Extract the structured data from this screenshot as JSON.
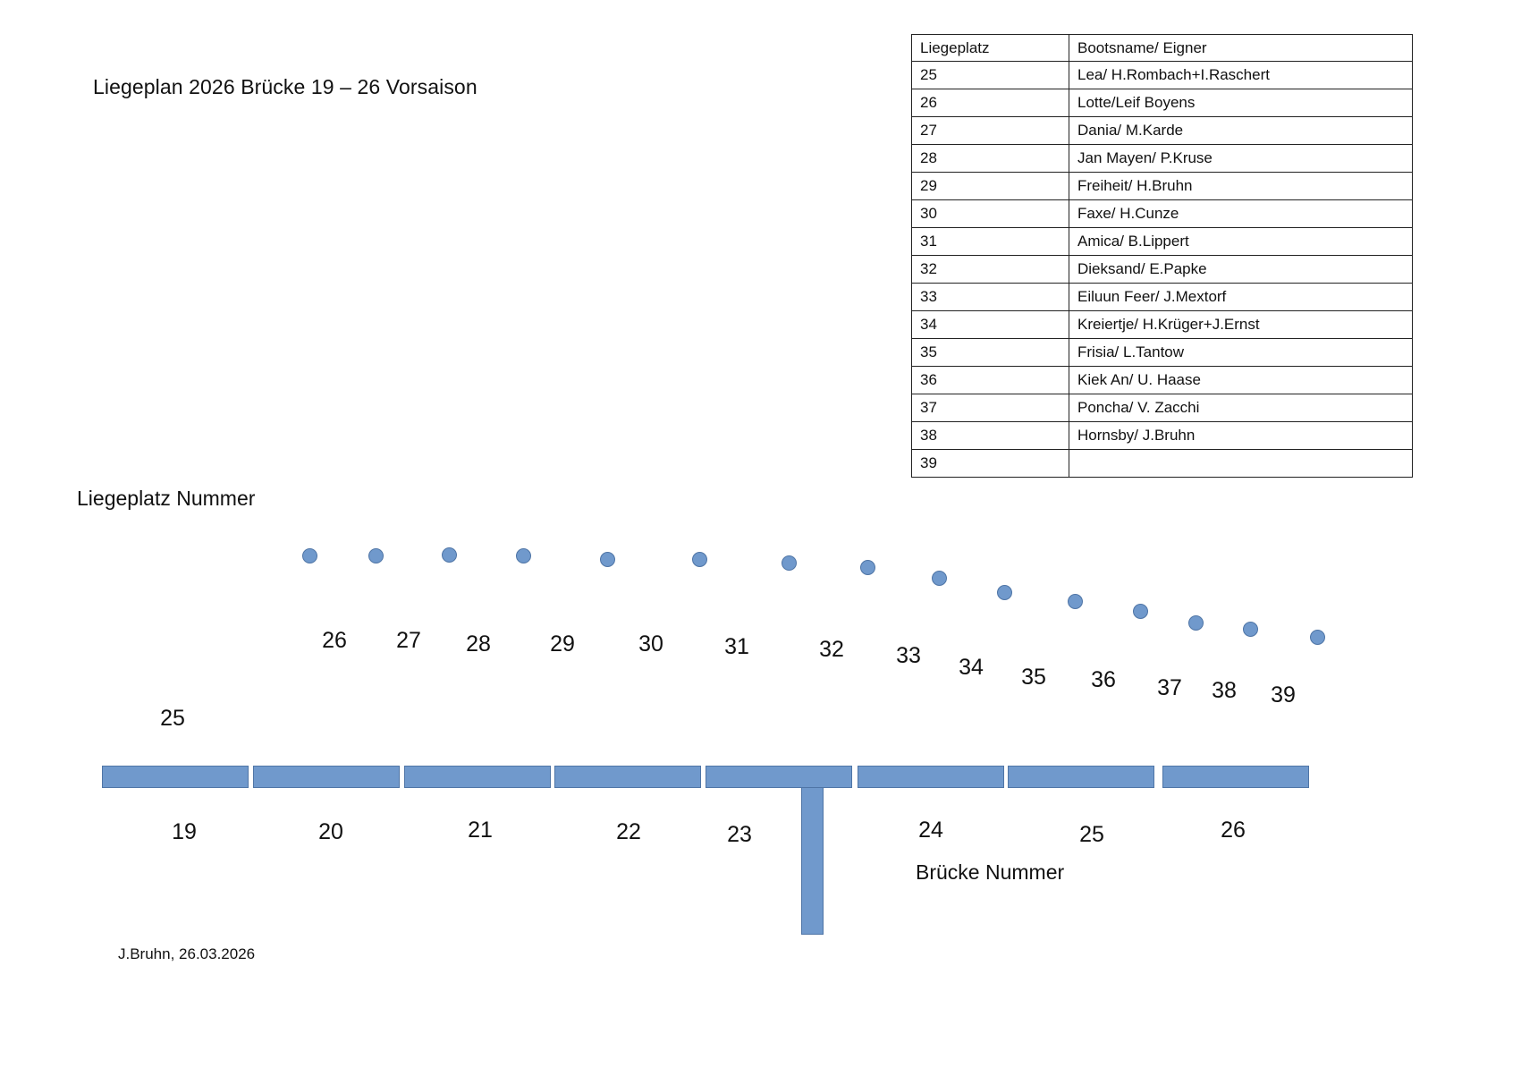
{
  "title": "Liegeplan 2026 Brücke 19 – 26 Vorsaison",
  "table": {
    "headers": [
      "Liegeplatz",
      "Bootsname/ Eigner"
    ],
    "rows": [
      [
        "25",
        "Lea/ H.Rombach+I.Raschert"
      ],
      [
        "26",
        "Lotte/Leif Boyens"
      ],
      [
        "27",
        "Dania/ M.Karde"
      ],
      [
        "28",
        "Jan Mayen/ P.Kruse"
      ],
      [
        "29",
        "Freiheit/ H.Bruhn"
      ],
      [
        "30",
        "Faxe/ H.Cunze"
      ],
      [
        "31",
        "Amica/ B.Lippert"
      ],
      [
        "32",
        "Dieksand/ E.Papke"
      ],
      [
        "33",
        "Eiluun Feer/ J.Mextorf"
      ],
      [
        "34",
        "Kreiertje/ H.Krüger+J.Ernst"
      ],
      [
        "35",
        "Frisia/ L.Tantow"
      ],
      [
        "36",
        "Kiek An/ U. Haase"
      ],
      [
        "37",
        "Poncha/ V. Zacchi"
      ],
      [
        "38",
        "Hornsby/ J.Bruhn"
      ],
      [
        "39",
        ""
      ]
    ]
  },
  "liegeplatz_label": "Liegeplatz Nummer",
  "bruecke_label": "Brücke Nummer",
  "berth_numbers": [
    "25",
    "26",
    "27",
    "28",
    "29",
    "30",
    "31",
    "32",
    "33",
    "34",
    "35",
    "36",
    "37",
    "38",
    "39"
  ],
  "bridge_numbers": [
    "19",
    "20",
    "21",
    "22",
    "23",
    "24",
    "25",
    "26"
  ],
  "footer": "J.Bruhn, 26.03.2026",
  "colors": {
    "shape_fill": "#7099cc",
    "shape_border": "#4f75a6"
  }
}
